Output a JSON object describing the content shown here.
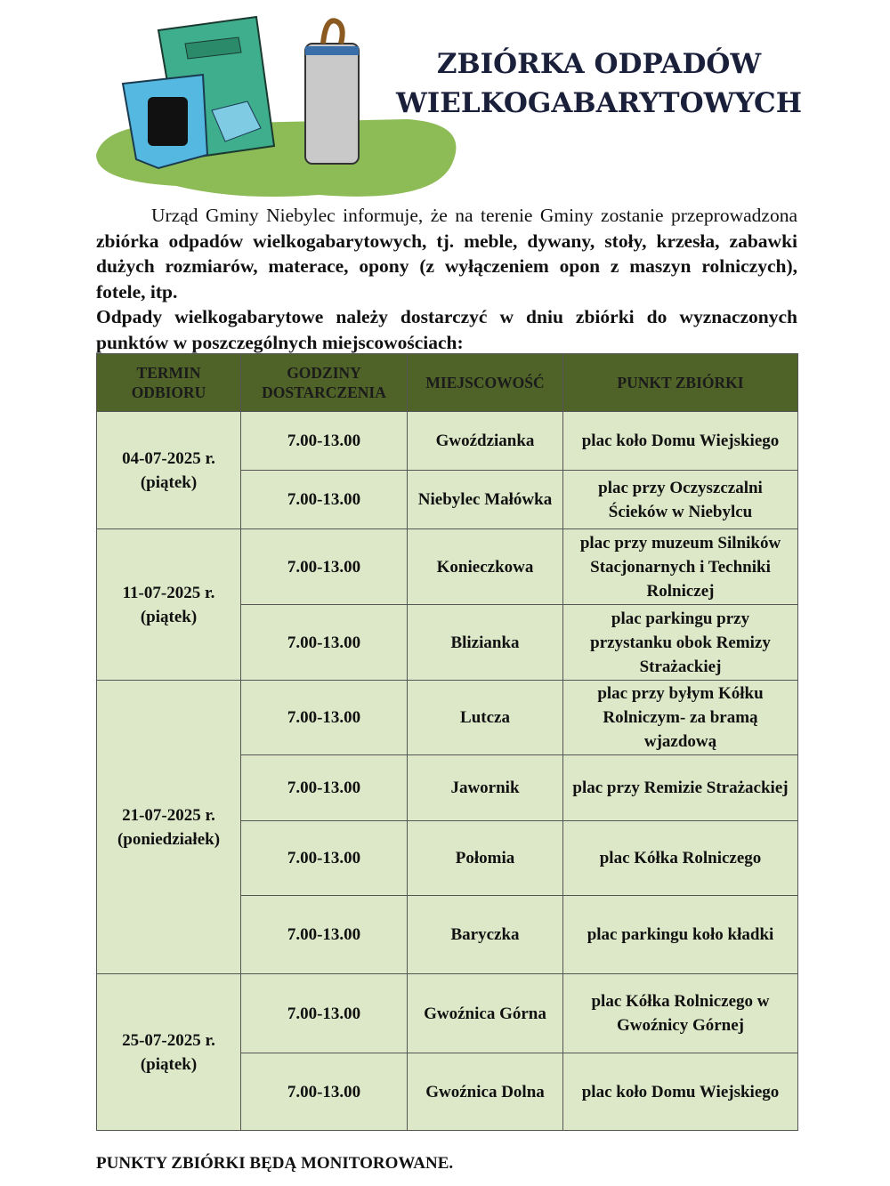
{
  "header": {
    "title_line1": "ZBIÓRKA ODPADÓW",
    "title_line2": "WIELKOGABARYTOWYCH"
  },
  "intro": {
    "p1_normal": "Urząd Gminy Niebylec informuje, że na terenie Gminy zostanie przeprowadzona ",
    "p1_bold": "zbiórka odpadów wielkogabarytowych, tj. meble, dywany, stoły, krzesła, zabawki dużych rozmiarów, materace, opony (z wyłączeniem opon z maszyn rolniczych), fotele, itp.",
    "p2": "Odpady wielkogabarytowe należy dostarczyć w dniu zbiórki do wyznaczonych punktów w poszczególnych miejscowościach:"
  },
  "table": {
    "headers": [
      "TERMIN ODBIORU",
      "GODZINY DOSTARCZENIA",
      "MIEJSCOWOŚĆ",
      "PUNKT ZBIÓRKI"
    ],
    "groups": [
      {
        "date": "04-07-2025 r.",
        "day": "(piątek)",
        "rows": [
          {
            "hours": "7.00-13.00",
            "place": "Gwoździanka",
            "point": "plac koło Domu Wiejskiego"
          },
          {
            "hours": "7.00-13.00",
            "place": "Niebylec Małówka",
            "point": "plac przy Oczyszczalni Ścieków w Niebylcu"
          }
        ]
      },
      {
        "date": "11-07-2025 r.",
        "day": "(piątek)",
        "rows": [
          {
            "hours": "7.00-13.00",
            "place": "Konieczkowa",
            "point": "plac przy muzeum Silników Stacjonarnych i Techniki Rolniczej"
          },
          {
            "hours": "7.00-13.00",
            "place": "Blizianka",
            "point": "plac parkingu przy przystanku obok Remizy Strażackiej"
          }
        ]
      },
      {
        "date": "21-07-2025 r.",
        "day": "(poniedziałek)",
        "rows": [
          {
            "hours": "7.00-13.00",
            "place": "Lutcza",
            "point": "plac przy byłym Kółku Rolniczym- za bramą wjazdową"
          },
          {
            "hours": "7.00-13.00",
            "place": "Jawornik",
            "point": "plac przy Remizie Strażackiej"
          },
          {
            "hours": "7.00-13.00",
            "place": "Połomia",
            "point": "plac Kółka Rolniczego"
          },
          {
            "hours": "7.00-13.00",
            "place": "Baryczka",
            "point": "plac parkingu koło kładki"
          }
        ]
      },
      {
        "date": "25-07-2025 r.",
        "day": "(piątek)",
        "rows": [
          {
            "hours": "7.00-13.00",
            "place": "Gwoźnica Górna",
            "point": "plac Kółka Rolniczego w Gwoźnicy Górnej"
          },
          {
            "hours": "7.00-13.00",
            "place": "Gwoźnica Dolna",
            "point": "plac koło Domu Wiejskiego"
          }
        ]
      }
    ]
  },
  "footer": "PUNKTY ZBIÓRKI BĘDĄ MONITOROWANE.",
  "colors": {
    "header_bg": "#4f6228",
    "cell_bg": "#dde8c9"
  }
}
